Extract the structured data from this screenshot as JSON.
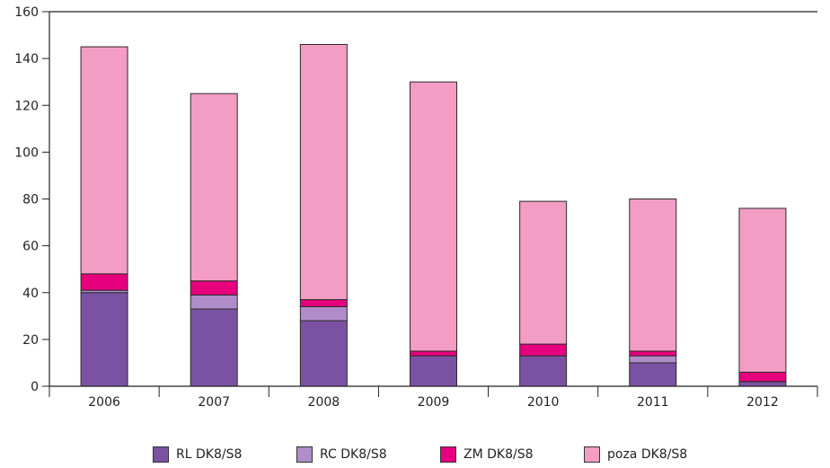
{
  "chart_data": {
    "type": "bar",
    "stacked": true,
    "categories": [
      "2006",
      "2007",
      "2008",
      "2009",
      "2010",
      "2011",
      "2012"
    ],
    "series": [
      {
        "name": "RL DK8/S8",
        "color": "#7b52a3",
        "values": [
          40,
          33,
          28,
          13,
          13,
          10,
          2
        ]
      },
      {
        "name": "RC DK8/S8",
        "color": "#b08cc8",
        "values": [
          1,
          6,
          6,
          0,
          0,
          3,
          0
        ]
      },
      {
        "name": "ZM DK8/S8",
        "color": "#e6007e",
        "values": [
          7,
          6,
          3,
          2,
          5,
          2,
          4
        ]
      },
      {
        "name": "poza DK8/S8",
        "color": "#f39cc4",
        "values": [
          97,
          80,
          109,
          115,
          61,
          65,
          70
        ]
      }
    ],
    "ylim": [
      0,
      160
    ],
    "yticks": [
      "0",
      "20",
      "40",
      "60",
      "80",
      "100",
      "120",
      "140",
      "160"
    ],
    "grid": false,
    "legend_position": "bottom"
  }
}
